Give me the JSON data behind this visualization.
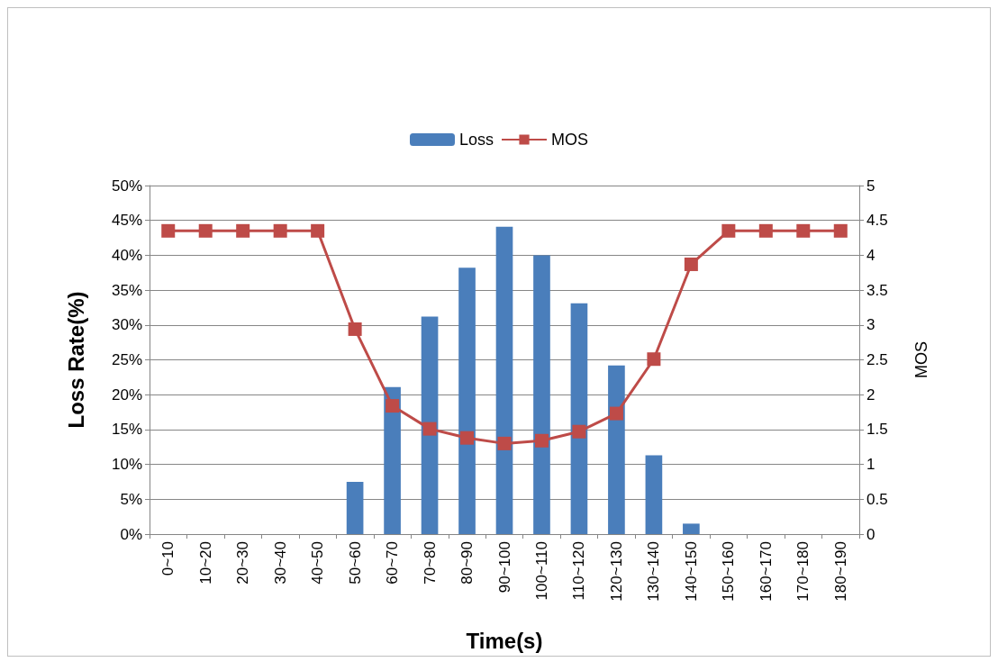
{
  "chart_data": {
    "type": "bar",
    "xlabel": "Time(s)",
    "ylabel": "Loss Rate(%)",
    "y2label": "MOS",
    "categories": [
      "0~10",
      "10~20",
      "20~30",
      "30~40",
      "40~50",
      "50~60",
      "60~70",
      "70~80",
      "80~90",
      "90~100",
      "100~110",
      "110~120",
      "120~130",
      "130~140",
      "140~150",
      "150~160",
      "160~170",
      "170~180",
      "180~190"
    ],
    "series": [
      {
        "name": "Loss",
        "color": "#4a7ebb",
        "values": [
          0,
          0,
          0,
          0,
          0,
          7.5,
          21.1,
          31.2,
          38.2,
          44.1,
          40.0,
          33.1,
          24.2,
          11.3,
          1.5,
          0,
          0,
          0,
          0
        ]
      },
      {
        "name": "MOS",
        "type": "line",
        "axis": "y2",
        "color": "#be4b48",
        "marker": "square",
        "values": [
          4.35,
          4.35,
          4.35,
          4.35,
          4.35,
          2.94,
          1.84,
          1.51,
          1.38,
          1.3,
          1.34,
          1.47,
          1.73,
          2.51,
          3.87,
          4.35,
          4.35,
          4.35,
          4.35
        ]
      }
    ],
    "ylim": [
      0,
      50
    ],
    "yticks": [
      {
        "value": 0,
        "label": "0%"
      },
      {
        "value": 5,
        "label": "5%"
      },
      {
        "value": 10,
        "label": "10%"
      },
      {
        "value": 15,
        "label": "15%"
      },
      {
        "value": 20,
        "label": "20%"
      },
      {
        "value": 25,
        "label": "25%"
      },
      {
        "value": 30,
        "label": "30%"
      },
      {
        "value": 35,
        "label": "35%"
      },
      {
        "value": 40,
        "label": "40%"
      },
      {
        "value": 45,
        "label": "45%"
      },
      {
        "value": 50,
        "label": "50%"
      }
    ],
    "y2lim": [
      0,
      5
    ],
    "y2ticks": [
      0,
      0.5,
      1,
      1.5,
      2,
      2.5,
      3,
      3.5,
      4,
      4.5,
      5
    ],
    "grid": "y",
    "legend": "top"
  }
}
